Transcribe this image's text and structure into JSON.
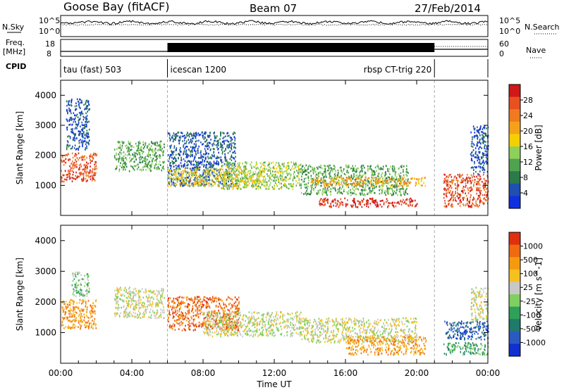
{
  "header": {
    "station": "Goose Bay (fitACF)",
    "beam": "Beam 07",
    "date": "27/Feb/2014"
  },
  "top_panels": {
    "sky_label": "N.Sky",
    "sky_scale_top": "10^5",
    "sky_scale_bottom": "10^0",
    "search_label": "N.Search",
    "search_scale_top": "10^5",
    "search_scale_bottom": "10^0",
    "freq_label_line1": "Freq.",
    "freq_label_line2": "[MHz]",
    "freq_scale_top": "18",
    "freq_scale_bottom": "8",
    "nave_label": "Nave",
    "nave_scale_top": "60",
    "nave_scale_bottom": "0",
    "cpid_label": "CPID",
    "cpid_modes": [
      {
        "label": "tau (fast) 503",
        "start_hr": 0
      },
      {
        "label": "icescan 1200",
        "start_hr": 6
      },
      {
        "label": "rbsp CT-trig 220",
        "start_hr": 21
      }
    ]
  },
  "chart_data": [
    {
      "type": "heatmap",
      "name": "power",
      "ylabel": "Slant Range [km]",
      "xlabel": "Time UT",
      "x_range_hr": [
        0,
        24
      ],
      "ylim": [
        0,
        4500
      ],
      "xticks": [
        "00:00",
        "04:00",
        "08:00",
        "12:00",
        "16:00",
        "20:00",
        "00:00"
      ],
      "yticks": [
        1000,
        2000,
        3000,
        4000
      ],
      "colorbar": {
        "title": "Power [dB]",
        "labels": [
          "4",
          "8",
          "12",
          "16",
          "20",
          "24",
          "28"
        ],
        "colors": [
          "#1030e0",
          "#1f4fb0",
          "#2a7a4a",
          "#4fa34f",
          "#8ed15a",
          "#f5d000",
          "#f5a21a",
          "#f07a20",
          "#e85020",
          "#d01818"
        ]
      },
      "regions": [
        {
          "t": [
            0.0,
            2.0
          ],
          "r": [
            1150,
            2100
          ],
          "level": 8
        },
        {
          "t": [
            0.3,
            1.6
          ],
          "r": [
            2200,
            3900
          ],
          "level": 1
        },
        {
          "t": [
            3.0,
            5.8
          ],
          "r": [
            1500,
            2500
          ],
          "level": 3
        },
        {
          "t": [
            6.0,
            9.8
          ],
          "r": [
            1000,
            2800
          ],
          "level": 1
        },
        {
          "t": [
            6.0,
            11.5
          ],
          "r": [
            1000,
            1600
          ],
          "level": 5
        },
        {
          "t": [
            9.0,
            13.5
          ],
          "r": [
            900,
            1800
          ],
          "level": 4
        },
        {
          "t": [
            13.5,
            19.5
          ],
          "r": [
            700,
            1700
          ],
          "level": 3
        },
        {
          "t": [
            14.0,
            20.5
          ],
          "r": [
            1000,
            1300
          ],
          "level": 6
        },
        {
          "t": [
            14.5,
            20.0
          ],
          "r": [
            300,
            600
          ],
          "level": 9
        },
        {
          "t": [
            21.5,
            24.0
          ],
          "r": [
            300,
            1400
          ],
          "level": 8
        },
        {
          "t": [
            23.0,
            24.0
          ],
          "r": [
            1400,
            3000
          ],
          "level": 1
        }
      ]
    },
    {
      "type": "heatmap",
      "name": "velocity",
      "ylabel": "Slant Range [km]",
      "xlabel": "Time UT",
      "x_range_hr": [
        0,
        24
      ],
      "ylim": [
        0,
        4500
      ],
      "xticks": [
        "00:00",
        "04:00",
        "08:00",
        "12:00",
        "16:00",
        "20:00",
        "00:00"
      ],
      "yticks": [
        1000,
        2000,
        3000,
        4000
      ],
      "colorbar": {
        "title": "Velocity [m s^-1]",
        "labels": [
          "1000",
          "500",
          "100",
          "25",
          "-25",
          "-100",
          "-500",
          "-1000"
        ],
        "colors": [
          "#1030d0",
          "#2a5ac0",
          "#1f7a6a",
          "#2fa05a",
          "#7fd060",
          "#c8c8c8",
          "#f5c020",
          "#f59a10",
          "#f06a10",
          "#e03010"
        ]
      },
      "regions": [
        {
          "t": [
            0.0,
            2.0
          ],
          "r": [
            1150,
            2100
          ],
          "level": 7
        },
        {
          "t": [
            0.6,
            1.6
          ],
          "r": [
            2200,
            3000
          ],
          "level": 4
        },
        {
          "t": [
            3.0,
            5.8
          ],
          "r": [
            1500,
            2500
          ],
          "level": 5
        },
        {
          "t": [
            6.0,
            10.0
          ],
          "r": [
            1100,
            2200
          ],
          "level": 8
        },
        {
          "t": [
            8.0,
            13.5
          ],
          "r": [
            900,
            1700
          ],
          "level": 5
        },
        {
          "t": [
            13.5,
            20.0
          ],
          "r": [
            700,
            1500
          ],
          "level": 5
        },
        {
          "t": [
            16.0,
            20.5
          ],
          "r": [
            300,
            900
          ],
          "level": 7
        },
        {
          "t": [
            21.5,
            24.0
          ],
          "r": [
            800,
            1400
          ],
          "level": 1
        },
        {
          "t": [
            21.5,
            24.0
          ],
          "r": [
            300,
            700
          ],
          "level": 3
        },
        {
          "t": [
            23.0,
            24.0
          ],
          "r": [
            1400,
            2500
          ],
          "level": 5
        }
      ]
    }
  ]
}
